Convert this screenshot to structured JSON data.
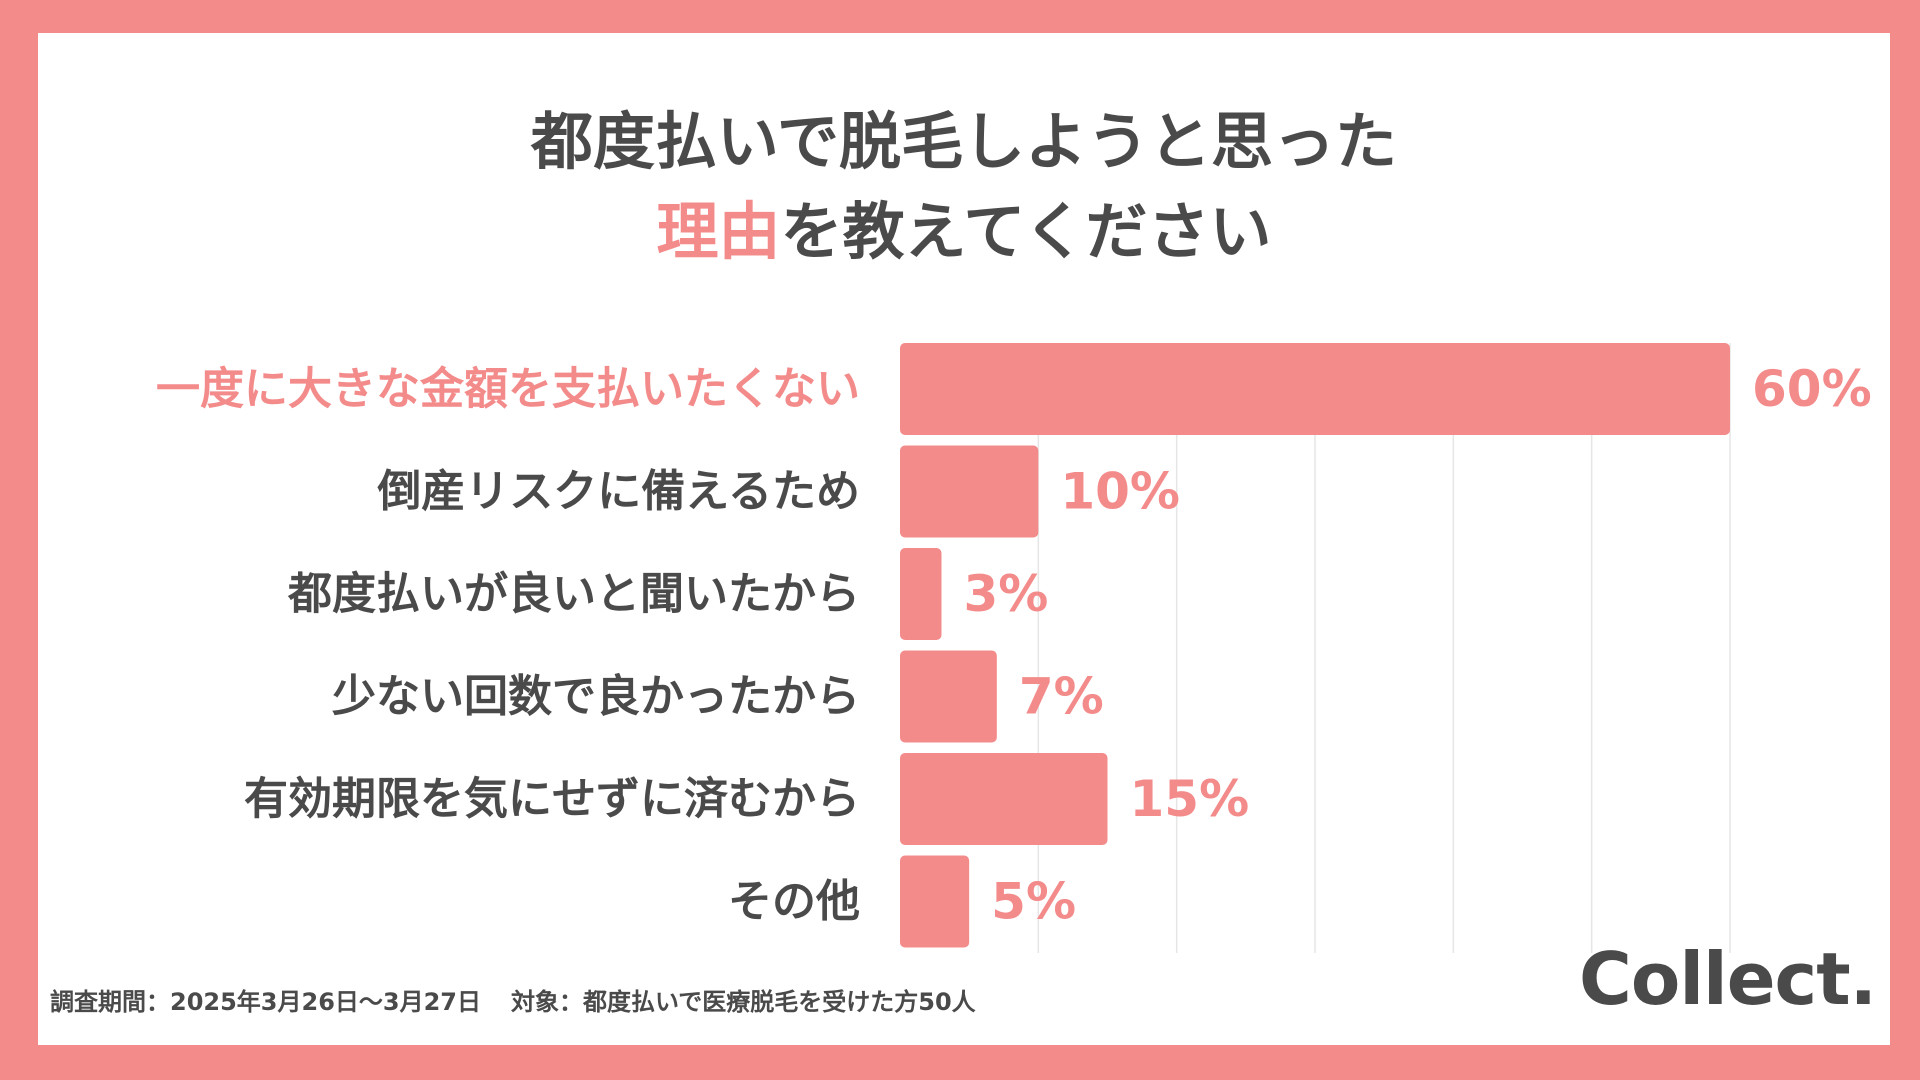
{
  "title": {
    "line1": "都度払いで脱毛しようと思った",
    "line2_accent": "理由",
    "line2_rest": "を教えてください"
  },
  "colors": {
    "accent": "#f48b8b",
    "text": "#4a4a4a",
    "highlight_label": "#f48b8b",
    "grid": "#e6e6e6"
  },
  "chart_data": {
    "type": "bar",
    "orientation": "horizontal",
    "categories": [
      "一度に大きな金額を支払いたくない",
      "倒産リスクに備えるため",
      "都度払いが良いと聞いたから",
      "少ない回数で良かったから",
      "有効期限を気にせずに済むから",
      "その他"
    ],
    "values": [
      60,
      10,
      3,
      7,
      15,
      5
    ],
    "value_labels": [
      "60%",
      "10%",
      "3%",
      "7%",
      "15%",
      "5%"
    ],
    "highlight_index": 0,
    "xlim": [
      0,
      60
    ],
    "grid": true,
    "grid_step": 10
  },
  "footer": {
    "period": "調査期間：2025年3月26日〜3月27日",
    "target": "対象：都度払いで医療脱毛を受けた方50人"
  },
  "logo": "Collect."
}
